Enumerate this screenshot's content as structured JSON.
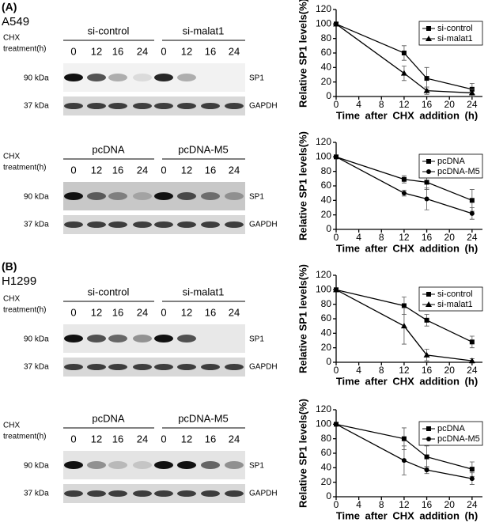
{
  "panels": [
    {
      "label": "(A)",
      "cell_line": "A549"
    },
    {
      "label": "(B)",
      "cell_line": "H1299"
    }
  ],
  "blots": [
    {
      "treatment": [
        "CHX",
        "treatment(h)"
      ],
      "groups": [
        "si-control",
        "si-malat1"
      ],
      "lanes": [
        "0",
        "12",
        "16",
        "24",
        "0",
        "12",
        "16",
        "24"
      ],
      "markers": [
        "90 kDa",
        "37 kDa"
      ],
      "proteins": [
        "SP1",
        "GAPDH"
      ]
    },
    {
      "treatment": [
        "CHX",
        "treatment(h)"
      ],
      "groups": [
        "pcDNA",
        "pcDNA-M5"
      ],
      "lanes": [
        "0",
        "12",
        "16",
        "24",
        "0",
        "12",
        "16",
        "24"
      ],
      "markers": [
        "90 kDa",
        "37 kDa"
      ],
      "proteins": [
        "SP1",
        "GAPDH"
      ]
    },
    {
      "treatment": [
        "CHX",
        "treatment(h)"
      ],
      "groups": [
        "si-control",
        "si-malat1"
      ],
      "lanes": [
        "0",
        "12",
        "16",
        "24",
        "0",
        "12",
        "16",
        "24"
      ],
      "markers": [
        "90 kDa",
        "37 kDa"
      ],
      "proteins": [
        "SP1",
        "GAPDH"
      ]
    },
    {
      "treatment": [
        "CHX",
        "treatment(h)"
      ],
      "groups": [
        "pcDNA",
        "pcDNA-M5"
      ],
      "lanes": [
        "0",
        "12",
        "16",
        "24",
        "0",
        "12",
        "16",
        "24"
      ],
      "markers": [
        "90 kDa",
        "37 kDa"
      ],
      "proteins": [
        "SP1",
        "GAPDH"
      ]
    }
  ],
  "chart_data": [
    {
      "type": "line",
      "y_label": "Relative SP1 levels(%)",
      "x_label": "Time after CHX addition (h)",
      "x": [
        0,
        12,
        16,
        24
      ],
      "xlim": [
        0,
        25
      ],
      "xticks": [
        0,
        4,
        8,
        12,
        16,
        20,
        24
      ],
      "ylim": [
        0,
        120
      ],
      "yticks": [
        0,
        20,
        40,
        60,
        80,
        100,
        120
      ],
      "legend": "upper right",
      "series": [
        {
          "name": "si-control",
          "color": "#000000",
          "marker": "square",
          "values": [
            100,
            60,
            25,
            10
          ],
          "errors": [
            0,
            10,
            15,
            8
          ]
        },
        {
          "name": "si-malat1",
          "color": "#000000",
          "marker": "triangle",
          "values": [
            100,
            32,
            8,
            5
          ],
          "errors": [
            0,
            10,
            5,
            5
          ]
        }
      ]
    },
    {
      "type": "line",
      "y_label": "Relative SP1 levels(%)",
      "x_label": "Time after CHX addition (h)",
      "x": [
        0,
        12,
        16,
        24
      ],
      "xlim": [
        0,
        25
      ],
      "xticks": [
        0,
        4,
        8,
        12,
        16,
        20,
        24
      ],
      "ylim": [
        0,
        120
      ],
      "yticks": [
        0,
        20,
        40,
        60,
        80,
        100,
        120
      ],
      "legend": "upper right",
      "series": [
        {
          "name": "pcDNA",
          "color": "#000000",
          "marker": "square",
          "values": [
            100,
            69,
            65,
            40
          ],
          "errors": [
            0,
            5,
            10,
            15
          ]
        },
        {
          "name": "pcDNA-M5",
          "color": "#000000",
          "marker": "circle",
          "values": [
            100,
            50,
            42,
            22
          ],
          "errors": [
            0,
            4,
            15,
            8
          ]
        }
      ]
    },
    {
      "type": "line",
      "y_label": "Relative SP1 levels(%)",
      "x_label": "Time after CHX addition (h)",
      "x": [
        0,
        12,
        16,
        24
      ],
      "xlim": [
        0,
        25
      ],
      "xticks": [
        0,
        4,
        8,
        12,
        16,
        20,
        24
      ],
      "ylim": [
        0,
        120
      ],
      "yticks": [
        0,
        20,
        40,
        60,
        80,
        100,
        120
      ],
      "legend": "upper right",
      "series": [
        {
          "name": "si-control",
          "color": "#000000",
          "marker": "square",
          "values": [
            100,
            78,
            58,
            28
          ],
          "errors": [
            0,
            12,
            8,
            8
          ]
        },
        {
          "name": "si-malat1",
          "color": "#000000",
          "marker": "triangle",
          "values": [
            100,
            50,
            10,
            2
          ],
          "errors": [
            0,
            25,
            8,
            3
          ]
        }
      ]
    },
    {
      "type": "line",
      "y_label": "Relative SP1 levels(%)",
      "x_label": "Time after CHX addition (h)",
      "x": [
        0,
        12,
        16,
        24
      ],
      "xlim": [
        0,
        25
      ],
      "xticks": [
        0,
        4,
        8,
        12,
        16,
        20,
        24
      ],
      "ylim": [
        0,
        120
      ],
      "yticks": [
        0,
        20,
        40,
        60,
        80,
        100,
        120
      ],
      "legend": "upper right",
      "series": [
        {
          "name": "pcDNA",
          "color": "#000000",
          "marker": "square",
          "values": [
            100,
            80,
            55,
            38
          ],
          "errors": [
            0,
            15,
            15,
            10
          ]
        },
        {
          "name": "pcDNA-M5",
          "color": "#000000",
          "marker": "circle",
          "values": [
            100,
            50,
            37,
            25
          ],
          "errors": [
            0,
            20,
            5,
            8
          ]
        }
      ]
    }
  ]
}
